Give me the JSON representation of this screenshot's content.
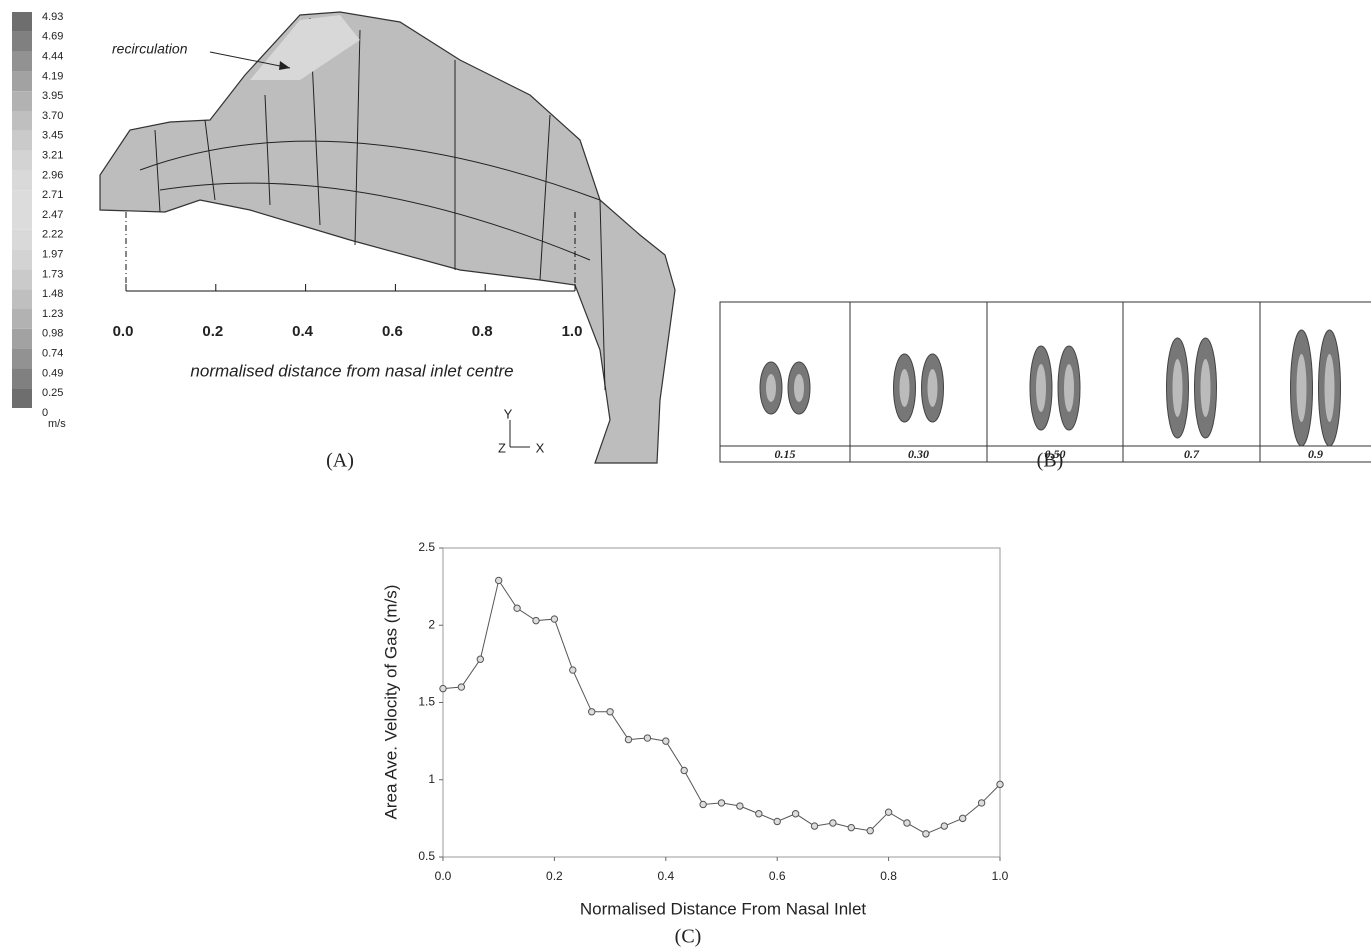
{
  "panel_a": {
    "colorbar": {
      "labels": [
        "4.93",
        "4.69",
        "4.44",
        "4.19",
        "3.95",
        "3.70",
        "3.45",
        "3.21",
        "2.96",
        "2.71",
        "2.47",
        "2.22",
        "1.97",
        "1.73",
        "1.48",
        "1.23",
        "0.98",
        "0.74",
        "0.49",
        "0.25",
        "0"
      ],
      "unit": "m/s"
    },
    "annotation": "recirculation",
    "axis_ticks": [
      "0.0",
      "0.2",
      "0.4",
      "0.6",
      "0.8",
      "1.0"
    ],
    "axis_label": "normalised distance from nasal inlet centre",
    "triad": [
      "Y",
      "Z",
      "X"
    ],
    "caption": "(A)"
  },
  "panel_b": {
    "sections": [
      "0.15",
      "0.30",
      "0.50",
      "0.7",
      "0.9"
    ],
    "caption": "(B)"
  },
  "chart_data": {
    "type": "line",
    "caption": "(C)",
    "x_label": "Normalised Distance From Nasal Inlet",
    "y_label": "Area Ave. Velocity of Gas (m/s)",
    "x": [
      0,
      0.033,
      0.067,
      0.1,
      0.133,
      0.167,
      0.2,
      0.233,
      0.267,
      0.3,
      0.333,
      0.367,
      0.4,
      0.433,
      0.467,
      0.5,
      0.533,
      0.567,
      0.6,
      0.633,
      0.667,
      0.7,
      0.733,
      0.767,
      0.8,
      0.833,
      0.867,
      0.9,
      0.933,
      0.967,
      1.0
    ],
    "values": [
      1.59,
      1.6,
      1.78,
      2.29,
      2.11,
      2.03,
      2.04,
      1.71,
      1.44,
      1.44,
      1.26,
      1.27,
      1.25,
      1.06,
      0.84,
      0.85,
      0.83,
      0.78,
      0.73,
      0.78,
      0.7,
      0.72,
      0.69,
      0.67,
      0.79,
      0.72,
      0.65,
      0.7,
      0.75,
      0.85,
      0.97
    ],
    "color": "#555555",
    "xlim": [
      0,
      1
    ],
    "ylim": [
      0.5,
      2.5
    ],
    "xticks": [
      {
        "value": 0,
        "label": "0.0"
      },
      {
        "value": 0.2,
        "label": "0.2"
      },
      {
        "value": 0.4,
        "label": "0.4"
      },
      {
        "value": 0.6,
        "label": "0.6"
      },
      {
        "value": 0.8,
        "label": "0.8"
      },
      {
        "value": 1,
        "label": "1.0"
      }
    ],
    "yticks": [
      0.5,
      1,
      1.5,
      2,
      2.5
    ]
  }
}
